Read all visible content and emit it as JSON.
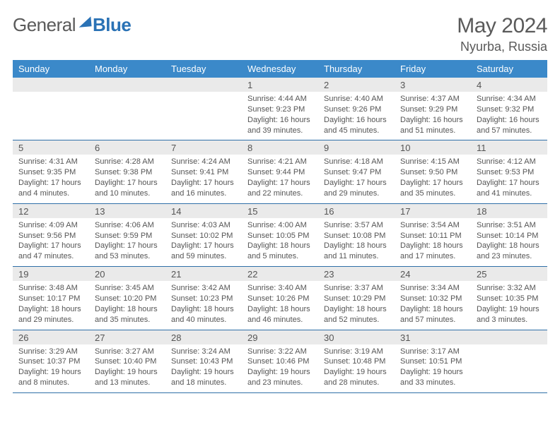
{
  "brand": {
    "part1": "General",
    "part2": "Blue"
  },
  "title": "May 2024",
  "location": "Nyurba, Russia",
  "colors": {
    "header_bg": "#3b89c9",
    "band_bg": "#eaeaea",
    "rule": "#2f6fa8",
    "text": "#555555",
    "page_bg": "#ffffff"
  },
  "weekdays": [
    "Sunday",
    "Monday",
    "Tuesday",
    "Wednesday",
    "Thursday",
    "Friday",
    "Saturday"
  ],
  "weeks": [
    [
      null,
      null,
      null,
      {
        "n": "1",
        "sr": "4:44 AM",
        "ss": "9:23 PM",
        "dl": "16 hours and 39 minutes."
      },
      {
        "n": "2",
        "sr": "4:40 AM",
        "ss": "9:26 PM",
        "dl": "16 hours and 45 minutes."
      },
      {
        "n": "3",
        "sr": "4:37 AM",
        "ss": "9:29 PM",
        "dl": "16 hours and 51 minutes."
      },
      {
        "n": "4",
        "sr": "4:34 AM",
        "ss": "9:32 PM",
        "dl": "16 hours and 57 minutes."
      }
    ],
    [
      {
        "n": "5",
        "sr": "4:31 AM",
        "ss": "9:35 PM",
        "dl": "17 hours and 4 minutes."
      },
      {
        "n": "6",
        "sr": "4:28 AM",
        "ss": "9:38 PM",
        "dl": "17 hours and 10 minutes."
      },
      {
        "n": "7",
        "sr": "4:24 AM",
        "ss": "9:41 PM",
        "dl": "17 hours and 16 minutes."
      },
      {
        "n": "8",
        "sr": "4:21 AM",
        "ss": "9:44 PM",
        "dl": "17 hours and 22 minutes."
      },
      {
        "n": "9",
        "sr": "4:18 AM",
        "ss": "9:47 PM",
        "dl": "17 hours and 29 minutes."
      },
      {
        "n": "10",
        "sr": "4:15 AM",
        "ss": "9:50 PM",
        "dl": "17 hours and 35 minutes."
      },
      {
        "n": "11",
        "sr": "4:12 AM",
        "ss": "9:53 PM",
        "dl": "17 hours and 41 minutes."
      }
    ],
    [
      {
        "n": "12",
        "sr": "4:09 AM",
        "ss": "9:56 PM",
        "dl": "17 hours and 47 minutes."
      },
      {
        "n": "13",
        "sr": "4:06 AM",
        "ss": "9:59 PM",
        "dl": "17 hours and 53 minutes."
      },
      {
        "n": "14",
        "sr": "4:03 AM",
        "ss": "10:02 PM",
        "dl": "17 hours and 59 minutes."
      },
      {
        "n": "15",
        "sr": "4:00 AM",
        "ss": "10:05 PM",
        "dl": "18 hours and 5 minutes."
      },
      {
        "n": "16",
        "sr": "3:57 AM",
        "ss": "10:08 PM",
        "dl": "18 hours and 11 minutes."
      },
      {
        "n": "17",
        "sr": "3:54 AM",
        "ss": "10:11 PM",
        "dl": "18 hours and 17 minutes."
      },
      {
        "n": "18",
        "sr": "3:51 AM",
        "ss": "10:14 PM",
        "dl": "18 hours and 23 minutes."
      }
    ],
    [
      {
        "n": "19",
        "sr": "3:48 AM",
        "ss": "10:17 PM",
        "dl": "18 hours and 29 minutes."
      },
      {
        "n": "20",
        "sr": "3:45 AM",
        "ss": "10:20 PM",
        "dl": "18 hours and 35 minutes."
      },
      {
        "n": "21",
        "sr": "3:42 AM",
        "ss": "10:23 PM",
        "dl": "18 hours and 40 minutes."
      },
      {
        "n": "22",
        "sr": "3:40 AM",
        "ss": "10:26 PM",
        "dl": "18 hours and 46 minutes."
      },
      {
        "n": "23",
        "sr": "3:37 AM",
        "ss": "10:29 PM",
        "dl": "18 hours and 52 minutes."
      },
      {
        "n": "24",
        "sr": "3:34 AM",
        "ss": "10:32 PM",
        "dl": "18 hours and 57 minutes."
      },
      {
        "n": "25",
        "sr": "3:32 AM",
        "ss": "10:35 PM",
        "dl": "19 hours and 3 minutes."
      }
    ],
    [
      {
        "n": "26",
        "sr": "3:29 AM",
        "ss": "10:37 PM",
        "dl": "19 hours and 8 minutes."
      },
      {
        "n": "27",
        "sr": "3:27 AM",
        "ss": "10:40 PM",
        "dl": "19 hours and 13 minutes."
      },
      {
        "n": "28",
        "sr": "3:24 AM",
        "ss": "10:43 PM",
        "dl": "19 hours and 18 minutes."
      },
      {
        "n": "29",
        "sr": "3:22 AM",
        "ss": "10:46 PM",
        "dl": "19 hours and 23 minutes."
      },
      {
        "n": "30",
        "sr": "3:19 AM",
        "ss": "10:48 PM",
        "dl": "19 hours and 28 minutes."
      },
      {
        "n": "31",
        "sr": "3:17 AM",
        "ss": "10:51 PM",
        "dl": "19 hours and 33 minutes."
      },
      null
    ]
  ],
  "labels": {
    "sunrise": "Sunrise: ",
    "sunset": "Sunset: ",
    "daylight": "Daylight: "
  }
}
